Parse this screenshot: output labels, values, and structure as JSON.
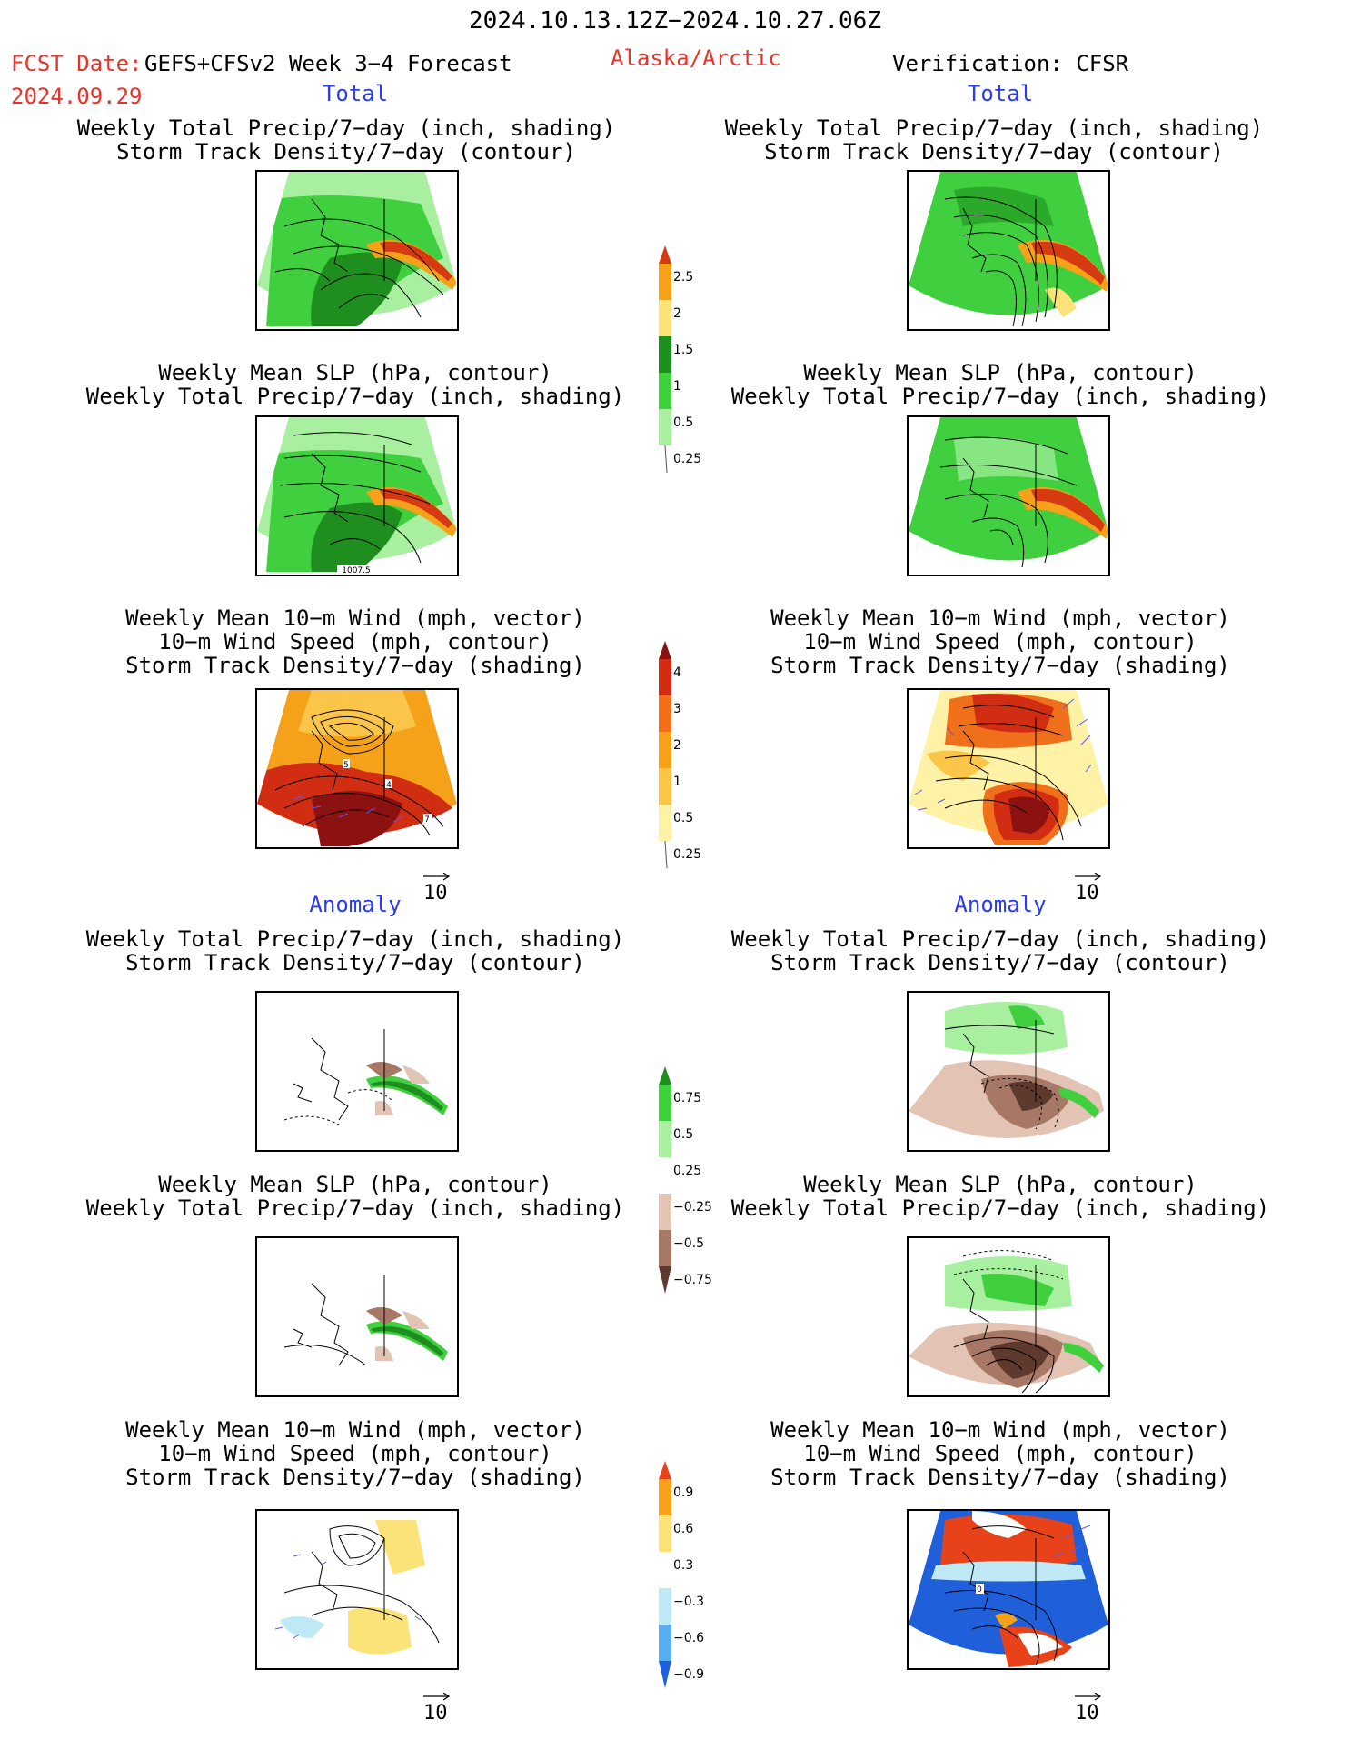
{
  "header": {
    "period": "2024.10.13.12Z−2024.10.27.06Z",
    "fcst_label": "FCST Date:",
    "model": "GEFS+CFSv2 Week 3−4 Forecast",
    "region": "Alaska/Arctic",
    "verification": "Verification: CFSR",
    "fcst_date": "2024.09.29"
  },
  "sections": {
    "total_left": "Total",
    "total_right": "Total",
    "anomaly_left": "Anomaly",
    "anomaly_right": "Anomaly"
  },
  "titles": {
    "precip_storm": "Weekly Total Precip/7−day (inch, shading)\nStorm Track Density/7−day (contour)",
    "slp_precip": "Weekly Mean SLP (hPa, contour)\nWeekly Total Precip/7−day (inch, shading)",
    "wind_storm": "Weekly Mean 10−m Wind (mph, vector)\n10−m Wind Speed (mph, contour)\nStorm Track Density/7−day (shading)"
  },
  "map_labels": {
    "slp_contour": "1007.5",
    "wind_c5": "5",
    "wind_c4": "4",
    "wind_c7": "7",
    "anom_wind_c0": "0"
  },
  "vector_reference": "10",
  "colorbars": {
    "precip_total": {
      "labels": [
        "2.5",
        "2",
        "1.5",
        "1",
        "0.5",
        "0.25"
      ],
      "colors": [
        "#d63a12",
        "#f5a21a",
        "#fbe37a",
        "#1e8f1e",
        "#3fcf3f",
        "#a8f0a0"
      ]
    },
    "storm_total": {
      "labels": [
        "4",
        "3",
        "2",
        "1",
        "0.5",
        "0.25"
      ],
      "colors": [
        "#8c1111",
        "#d12d12",
        "#ef6f1a",
        "#f5a21a",
        "#fbc54a",
        "#fdf2a6"
      ]
    },
    "precip_anom": {
      "labels": [
        "0.75",
        "0.5",
        "0.25",
        "−0.25",
        "−0.5",
        "−0.75"
      ],
      "colors": [
        "#1e8f1e",
        "#3fcf3f",
        "#a8f0a0",
        "#ffffff",
        "#e2c3b4",
        "#a77866",
        "#5e3a2e"
      ]
    },
    "storm_anom": {
      "labels": [
        "0.9",
        "0.6",
        "0.3",
        "−0.3",
        "−0.6",
        "−0.9"
      ],
      "colors": [
        "#e8421a",
        "#f5a21a",
        "#fbe37a",
        "#ffffff",
        "#bfeaf5",
        "#58aef0",
        "#1f5fd9"
      ]
    }
  }
}
